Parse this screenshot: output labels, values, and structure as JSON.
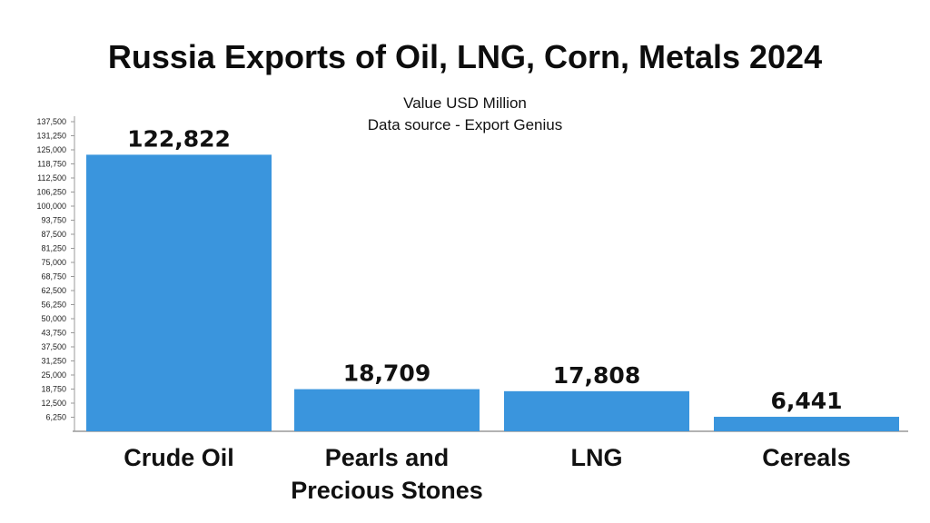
{
  "chart_data": {
    "type": "bar",
    "title": "Russia Exports of Oil, LNG, Corn, Metals 2024",
    "subtitle_lines": [
      "Value USD Million",
      "Data source - Export Genius"
    ],
    "categories": [
      [
        "Crude Oil"
      ],
      [
        "Pearls and",
        "Precious Stones"
      ],
      [
        "LNG"
      ],
      [
        "Cereals"
      ]
    ],
    "values": [
      122822,
      18709,
      17808,
      6441
    ],
    "value_labels": [
      "122,822",
      "18,709",
      "17,808",
      "6,441"
    ],
    "y_ticks": [
      6250,
      12500,
      18750,
      25000,
      31250,
      37500,
      43750,
      50000,
      56250,
      62500,
      68750,
      75000,
      81250,
      87500,
      93750,
      100000,
      106250,
      112500,
      118750,
      125000,
      131250,
      137500
    ],
    "y_tick_labels": [
      "6,250",
      "12,500",
      "18,750",
      "25,000",
      "31,250",
      "37,500",
      "43,750",
      "50,000",
      "56,250",
      "62,500",
      "68,750",
      "75,000",
      "81,250",
      "87,500",
      "93,750",
      "100,000",
      "106,250",
      "112,500",
      "118,750",
      "125,000",
      "131,250",
      "137,500"
    ],
    "ylim": [
      0,
      137500
    ],
    "xlabel": "",
    "ylabel": "",
    "grid": false,
    "legend": "none",
    "colors": {
      "bar": "#3a95dd",
      "axis": "#9a9a9a",
      "text": "#111111"
    }
  }
}
